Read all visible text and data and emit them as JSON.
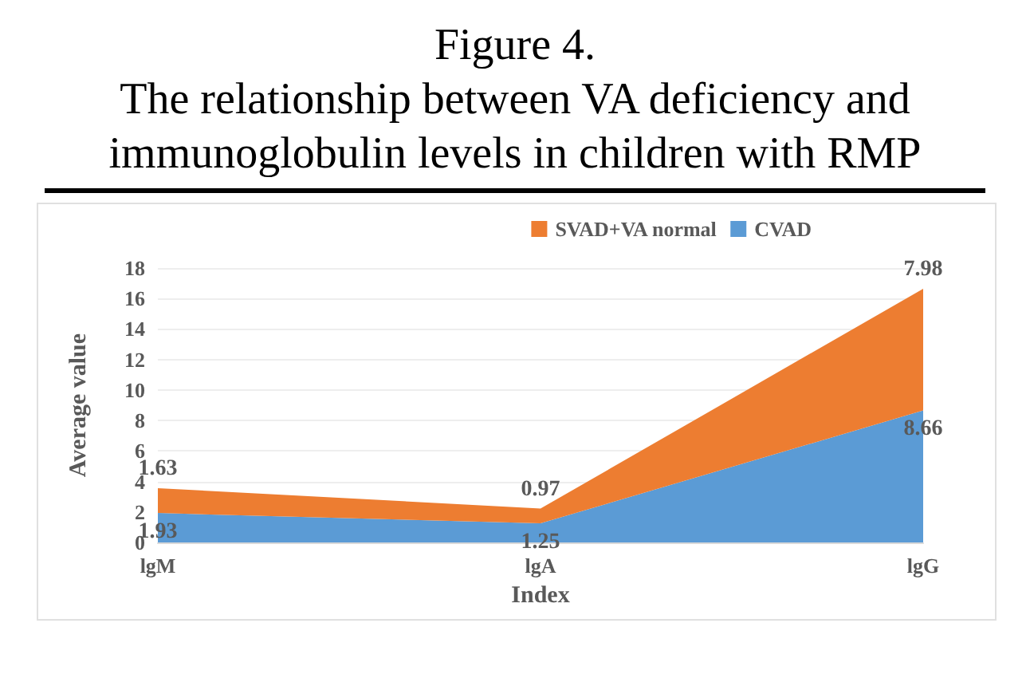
{
  "chart_data": {
    "type": "area",
    "stacked": true,
    "title": "Figure 4.\nThe relationship between VA deficiency and\nimmunoglobulin levels in children with RMP",
    "xlabel": "Index",
    "ylabel": "Average value",
    "categories": [
      "lgM",
      "lgA",
      "lgG"
    ],
    "series": [
      {
        "name": "CVAD",
        "color": "#5b9bd5",
        "values": [
          1.93,
          1.25,
          8.66
        ]
      },
      {
        "name": "SVAD+VA normal",
        "color": "#ed7d31",
        "values": [
          1.63,
          0.97,
          7.98
        ]
      }
    ],
    "ylim": [
      0,
      18
    ],
    "yticks": [
      0,
      2,
      4,
      6,
      8,
      10,
      12,
      14,
      16,
      18
    ],
    "grid": "y",
    "legend": "top",
    "data_labels": true
  }
}
